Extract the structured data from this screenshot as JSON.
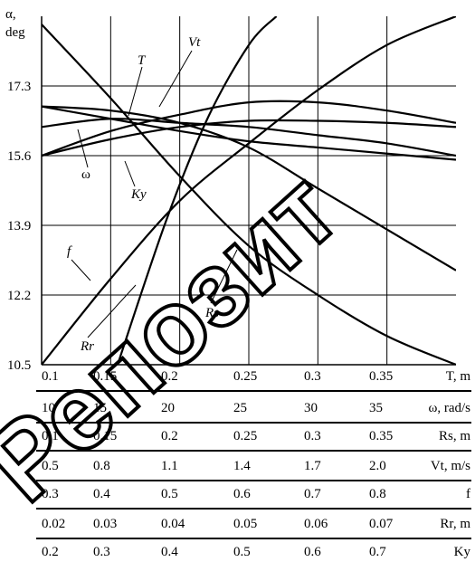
{
  "chart_data": {
    "type": "line",
    "y_label": [
      "α,",
      "deg"
    ],
    "y_ticks": [
      "17.3",
      "15.6",
      "13.9",
      "12.2",
      "10.5"
    ],
    "ylim": [
      10.5,
      19.0
    ],
    "grid": true,
    "scales": [
      {
        "id": "T",
        "label": "T, m",
        "values": [
          "0.1",
          "0.15",
          "0.2",
          "0.25",
          "0.3",
          "0.35"
        ]
      },
      {
        "id": "w",
        "label": "ω, rad/s",
        "values": [
          "10",
          "15",
          "20",
          "25",
          "30",
          "35"
        ]
      },
      {
        "id": "Rs",
        "label": "Rs, m",
        "values": [
          "0.1",
          "0.15",
          "0.2",
          "0.25",
          "0.3",
          "0.35"
        ]
      },
      {
        "id": "Vt",
        "label": "Vt, m/s",
        "values": [
          "0.5",
          "0.8",
          "1.1",
          "1.4",
          "1.7",
          "2.0"
        ]
      },
      {
        "id": "f",
        "label": "f",
        "values": [
          "0.3",
          "0.4",
          "0.5",
          "0.6",
          "0.7",
          "0.8"
        ]
      },
      {
        "id": "Rr",
        "label": "Rr, m",
        "values": [
          "0.02",
          "0.03",
          "0.04",
          "0.05",
          "0.06",
          "0.07"
        ]
      },
      {
        "id": "Ky",
        "label": "Ky",
        "values": [
          "0.2",
          "0.3",
          "0.4",
          "0.5",
          "0.6",
          "0.7"
        ]
      }
    ],
    "series": [
      {
        "name": "T",
        "points": [
          [
            0.1,
            16.8
          ],
          [
            0.15,
            16.5
          ],
          [
            0.2,
            16.2
          ],
          [
            0.25,
            15.95
          ],
          [
            0.3,
            15.8
          ],
          [
            0.35,
            15.65
          ],
          [
            0.4,
            15.5
          ]
        ]
      },
      {
        "name": "ω",
        "points": [
          [
            0.1,
            15.6
          ],
          [
            0.15,
            16.0
          ],
          [
            0.2,
            16.3
          ],
          [
            0.25,
            16.45
          ],
          [
            0.3,
            16.45
          ],
          [
            0.35,
            16.4
          ],
          [
            0.4,
            16.3
          ]
        ]
      },
      {
        "name": "Ky",
        "points": [
          [
            0.1,
            16.3
          ],
          [
            0.15,
            16.5
          ],
          [
            0.2,
            16.4
          ],
          [
            0.25,
            16.3
          ],
          [
            0.3,
            16.1
          ],
          [
            0.35,
            15.9
          ],
          [
            0.4,
            15.6
          ]
        ]
      },
      {
        "name": "Vt",
        "points": [
          [
            0.1,
            15.6
          ],
          [
            0.15,
            16.2
          ],
          [
            0.2,
            16.6
          ],
          [
            0.25,
            16.9
          ],
          [
            0.3,
            16.9
          ],
          [
            0.35,
            16.7
          ],
          [
            0.4,
            16.4
          ]
        ]
      },
      {
        "name": "Rs",
        "points": [
          [
            0.1,
            18.8
          ],
          [
            0.15,
            17.0
          ],
          [
            0.2,
            15.1
          ],
          [
            0.25,
            13.4
          ],
          [
            0.3,
            12.2
          ],
          [
            0.35,
            11.2
          ],
          [
            0.4,
            10.5
          ]
        ]
      },
      {
        "name": "f",
        "points": [
          [
            0.1,
            10.5
          ],
          [
            0.15,
            12.6
          ],
          [
            0.2,
            14.5
          ],
          [
            0.25,
            15.9
          ],
          [
            0.3,
            17.2
          ],
          [
            0.35,
            18.3
          ],
          [
            0.4,
            19.0
          ]
        ]
      },
      {
        "name": "Rr",
        "points": [
          [
            0.155,
            10.5
          ],
          [
            0.19,
            14.0
          ],
          [
            0.22,
            16.5
          ],
          [
            0.25,
            18.3
          ],
          [
            0.27,
            19.0
          ]
        ]
      },
      {
        "name": "—",
        "points": [
          [
            0.1,
            16.8
          ],
          [
            0.15,
            16.7
          ],
          [
            0.2,
            16.4
          ],
          [
            0.25,
            15.8
          ],
          [
            0.3,
            14.8
          ],
          [
            0.35,
            13.8
          ],
          [
            0.4,
            12.8
          ]
        ]
      }
    ],
    "annotations": [
      "T",
      "Vt",
      "ω",
      "Ky",
      "f",
      "Rr",
      "Rs"
    ],
    "watermark": "Репозит"
  }
}
